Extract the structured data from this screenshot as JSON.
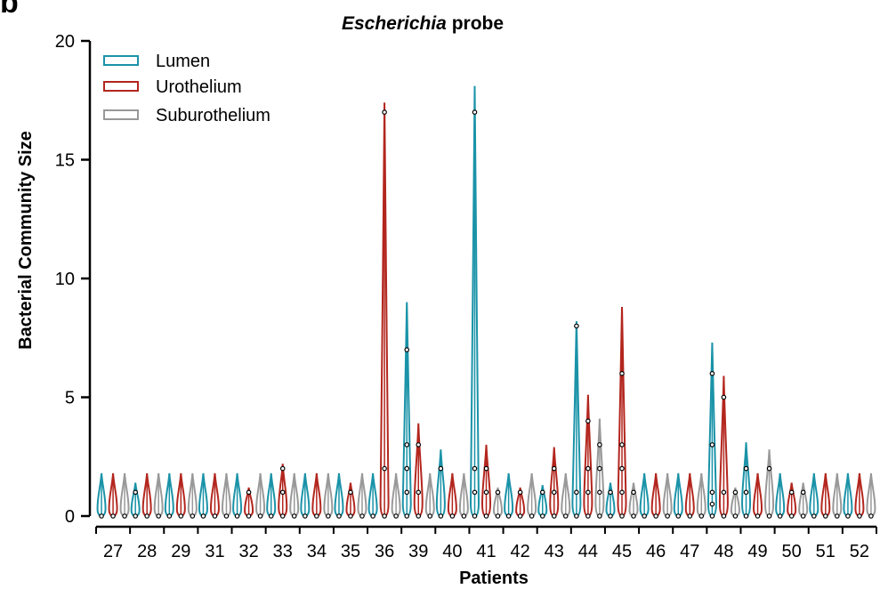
{
  "panel_label": "b",
  "chart_data": {
    "type": "violin",
    "title_italic": "Escherichia",
    "title_rest": " probe",
    "xlabel": "Patients",
    "ylabel": "Bacterial Community Size",
    "ylim": [
      0,
      20
    ],
    "yticks": [
      0,
      5,
      10,
      15,
      20
    ],
    "grid": false,
    "legend_position": "top-left",
    "categories": [
      "27",
      "28",
      "29",
      "31",
      "32",
      "33",
      "34",
      "35",
      "36",
      "39",
      "40",
      "41",
      "42",
      "43",
      "44",
      "45",
      "46",
      "47",
      "48",
      "49",
      "50",
      "51",
      "52"
    ],
    "series": [
      {
        "name": "Lumen",
        "color": "#1a93a8",
        "max": [
          1.8,
          1.4,
          1.8,
          1.8,
          1.8,
          1.8,
          1.8,
          1.8,
          1.8,
          9.0,
          2.8,
          18.1,
          1.8,
          1.3,
          8.2,
          1.4,
          1.8,
          1.8,
          7.3,
          3.1,
          1.8,
          1.8,
          1.8
        ],
        "points": [
          [
            0
          ],
          [
            0,
            1
          ],
          [
            0
          ],
          [
            0
          ],
          [
            0
          ],
          [
            0
          ],
          [
            0
          ],
          [
            0
          ],
          [
            0
          ],
          [
            0,
            1,
            2,
            3,
            7
          ],
          [
            0,
            2
          ],
          [
            0,
            1,
            2,
            17
          ],
          [
            0
          ],
          [
            0,
            1
          ],
          [
            0,
            1,
            8
          ],
          [
            0,
            1
          ],
          [
            0
          ],
          [
            0
          ],
          [
            0,
            0.5,
            1,
            3,
            6
          ],
          [
            0,
            1,
            2
          ],
          [
            0
          ],
          [
            0
          ],
          [
            0
          ]
        ]
      },
      {
        "name": "Urothelium",
        "color": "#b3261e",
        "max": [
          1.8,
          1.8,
          1.8,
          1.8,
          1.2,
          2.2,
          1.8,
          1.4,
          17.4,
          3.9,
          1.8,
          3.0,
          1.2,
          2.9,
          5.1,
          8.8,
          1.8,
          1.8,
          5.9,
          1.8,
          1.4,
          1.8,
          1.8
        ],
        "points": [
          [
            0
          ],
          [
            0
          ],
          [
            0
          ],
          [
            0
          ],
          [
            0,
            1
          ],
          [
            0,
            1,
            2
          ],
          [
            0
          ],
          [
            0,
            1
          ],
          [
            0,
            2,
            17
          ],
          [
            0,
            1,
            3
          ],
          [
            0
          ],
          [
            0,
            1,
            2
          ],
          [
            0,
            1
          ],
          [
            0,
            1,
            2
          ],
          [
            0,
            1,
            2,
            4
          ],
          [
            0,
            1,
            2,
            3,
            6
          ],
          [
            0
          ],
          [
            0
          ],
          [
            0,
            1,
            5
          ],
          [
            0
          ],
          [
            0,
            1
          ],
          [
            0
          ],
          [
            0
          ]
        ]
      },
      {
        "name": "Suburothelium",
        "color": "#999999",
        "max": [
          1.8,
          1.8,
          1.8,
          1.8,
          1.8,
          1.8,
          1.8,
          1.8,
          1.8,
          1.8,
          1.8,
          1.2,
          1.8,
          1.8,
          4.1,
          1.4,
          1.8,
          1.8,
          1.2,
          2.8,
          1.4,
          1.8,
          1.8
        ],
        "points": [
          [
            0
          ],
          [
            0
          ],
          [
            0
          ],
          [
            0
          ],
          [
            0
          ],
          [
            0
          ],
          [
            0
          ],
          [
            0
          ],
          [
            0
          ],
          [
            0
          ],
          [
            0
          ],
          [
            0,
            1
          ],
          [
            0
          ],
          [
            0
          ],
          [
            0,
            1,
            2,
            3
          ],
          [
            0,
            1
          ],
          [
            0
          ],
          [
            0
          ],
          [
            0,
            1
          ],
          [
            0,
            2
          ],
          [
            0,
            1
          ],
          [
            0
          ],
          [
            0
          ]
        ]
      }
    ]
  }
}
